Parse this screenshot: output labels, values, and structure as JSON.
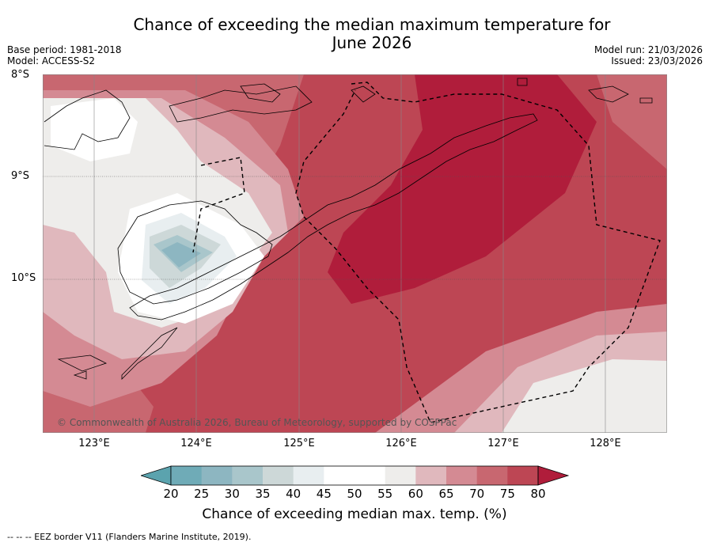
{
  "title_line1": "Chance of exceeding the median maximum temperature for",
  "title_line2": "June 2026",
  "base_period": "Base period: 1981-2018",
  "model": "Model: ACCESS-S2",
  "model_run": "Model run: 21/03/2026",
  "issued": "Issued: 23/03/2026",
  "copyright": "© Commonwealth of Australia 2026, Bureau of Meteorology, supported by COSPPac",
  "lat_labels": [
    "8°S",
    "9°S",
    "10°S"
  ],
  "lon_labels": [
    "123°E",
    "124°E",
    "125°E",
    "126°E",
    "127°E",
    "128°E"
  ],
  "colorbar": {
    "ticks": [
      "20",
      "25",
      "30",
      "35",
      "40",
      "45",
      "50",
      "55",
      "60",
      "65",
      "70",
      "75",
      "80"
    ],
    "label": "Chance of exceeding median max. temp. (%)",
    "colors": {
      "lt20": "#5ba3ae",
      "c20_25": "#6fabb7",
      "c25_30": "#8db6c1",
      "c30_35": "#a9c6cb",
      "c35_40": "#cdd8d8",
      "c40_45": "#e8eef0",
      "c45_50": "#ffffff",
      "c50_55": "#ffffff",
      "c55_60": "#eeedeb",
      "c60_65": "#e0b8bd",
      "c65_70": "#d48a93",
      "c70_75": "#c86770",
      "c75_80": "#bd4654",
      "gt80": "#b01d3b"
    }
  },
  "footer": "--  --  -- EEZ border V11 (Flanders Marine Institute, 2019)."
}
